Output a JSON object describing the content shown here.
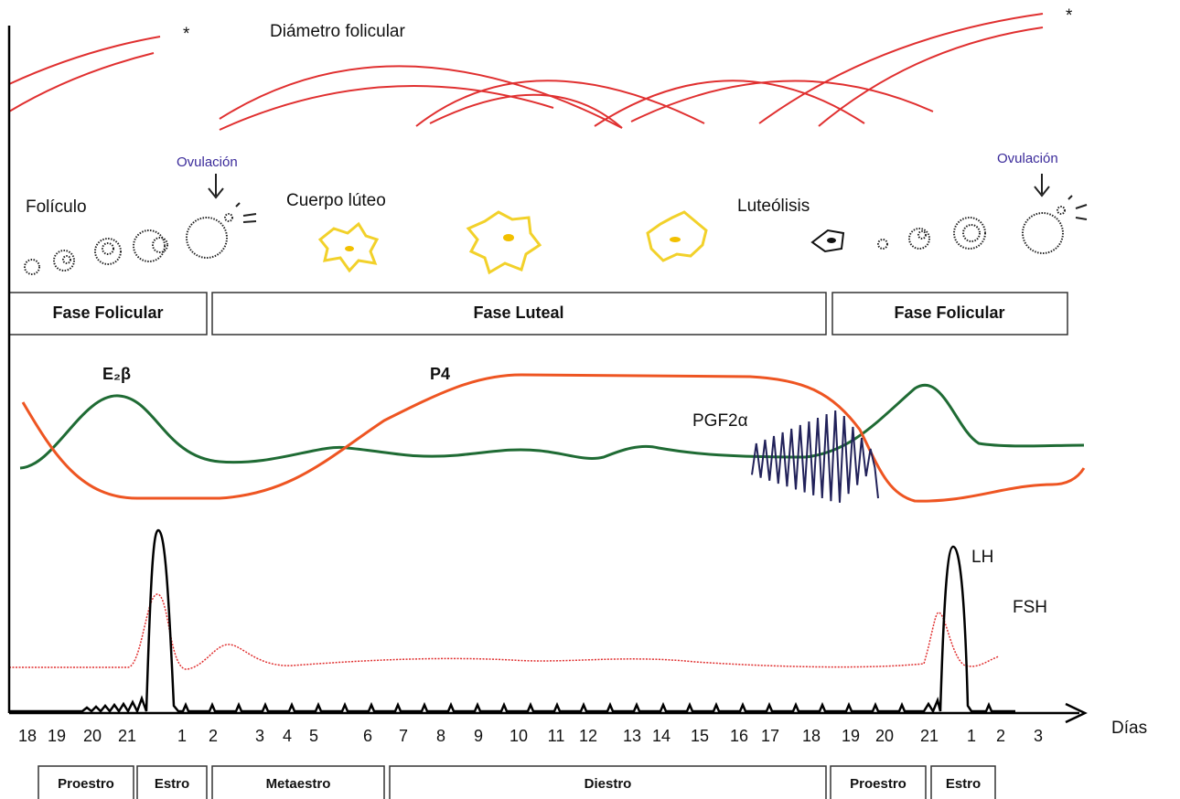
{
  "top": {
    "title": "Diámetro folicular",
    "star_left": "*",
    "star_right": "*"
  },
  "ovary": {
    "ovulation_left": "Ovulación",
    "ovulation_right": "Ovulación",
    "follicle": "Folículo",
    "corpus_luteum": "Cuerpo lúteo",
    "luteolysis": "Luteólisis"
  },
  "phases": [
    "Fase Folicular",
    "Fase Luteal",
    "Fase Folicular"
  ],
  "hormones": {
    "estradiol": "E₂β",
    "progesterone": "P4",
    "prostaglandin": "PGF2α",
    "lh": "LH",
    "fsh": "FSH"
  },
  "axis_label": "Días",
  "days": [
    18,
    19,
    20,
    21,
    1,
    2,
    3,
    4,
    5,
    6,
    7,
    8,
    9,
    10,
    11,
    12,
    13,
    14,
    15,
    16,
    17,
    18,
    19,
    20,
    21,
    1,
    2,
    3
  ],
  "stages": [
    "Proestro",
    "Estro",
    "Metaestro",
    "Diestro",
    "Proestro",
    "Estro"
  ]
}
